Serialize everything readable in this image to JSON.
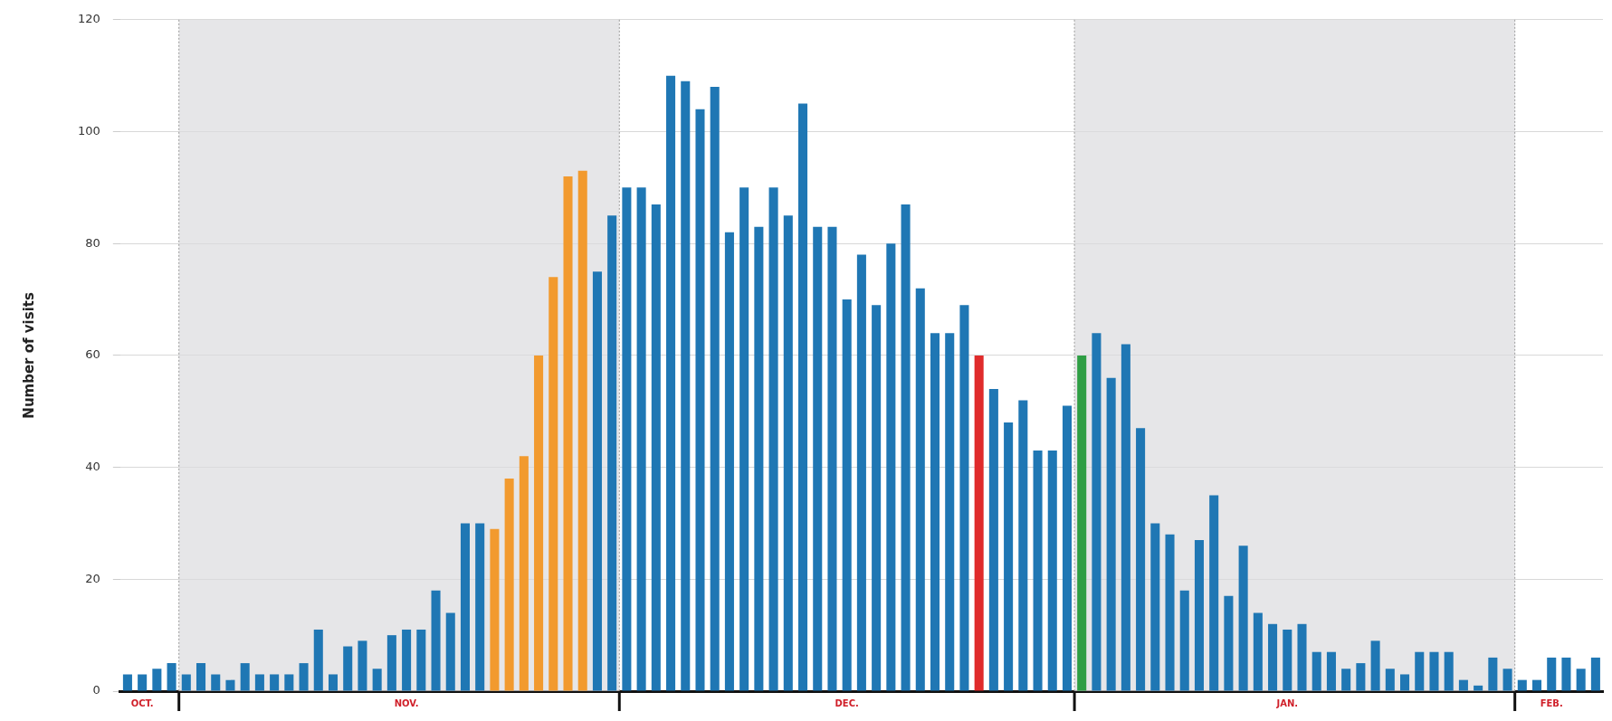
{
  "chart_data": {
    "type": "bar",
    "ylabel": "Number of visits",
    "categories": [
      null,
      "OCT.",
      null,
      null,
      null,
      null,
      null,
      null,
      null,
      null,
      null,
      null,
      null,
      null,
      null,
      null,
      null,
      null,
      null,
      "NOV.",
      null,
      null,
      null,
      null,
      null,
      null,
      null,
      null,
      null,
      null,
      null,
      null,
      null,
      null,
      null,
      null,
      null,
      null,
      null,
      null,
      null,
      null,
      null,
      null,
      null,
      null,
      null,
      null,
      null,
      "DEC.",
      null,
      null,
      null,
      null,
      null,
      null,
      null,
      null,
      null,
      null,
      null,
      null,
      null,
      null,
      null,
      null,
      null,
      null,
      null,
      null,
      null,
      null,
      null,
      null,
      null,
      null,
      null,
      null,
      null,
      "JAN.",
      null,
      null,
      null,
      null,
      null,
      null,
      null,
      null,
      null,
      null,
      null,
      null,
      null,
      null,
      null,
      null,
      null,
      "FEB.",
      null,
      null,
      null
    ],
    "values": [
      3,
      3,
      4,
      5,
      3,
      5,
      3,
      2,
      5,
      3,
      3,
      3,
      5,
      11,
      3,
      8,
      9,
      4,
      10,
      11,
      11,
      18,
      14,
      30,
      30,
      29,
      38,
      42,
      60,
      74,
      92,
      93,
      75,
      85,
      90,
      90,
      87,
      110,
      109,
      104,
      108,
      82,
      90,
      83,
      90,
      85,
      105,
      83,
      83,
      70,
      78,
      69,
      80,
      87,
      72,
      64,
      64,
      69,
      60,
      54,
      48,
      52,
      43,
      43,
      51,
      60,
      64,
      56,
      62,
      47,
      30,
      28,
      18,
      27,
      35,
      17,
      26,
      14,
      12,
      11,
      12,
      7,
      7,
      4,
      5,
      9,
      4,
      3,
      7,
      7,
      7,
      2,
      1,
      6,
      4,
      2,
      2,
      6,
      6,
      4,
      6
    ],
    "colors": [
      "#1f77b4",
      "#1f77b4",
      "#1f77b4",
      "#1f77b4",
      "#1f77b4",
      "#1f77b4",
      "#1f77b4",
      "#1f77b4",
      "#1f77b4",
      "#1f77b4",
      "#1f77b4",
      "#1f77b4",
      "#1f77b4",
      "#1f77b4",
      "#1f77b4",
      "#1f77b4",
      "#1f77b4",
      "#1f77b4",
      "#1f77b4",
      "#1f77b4",
      "#1f77b4",
      "#1f77b4",
      "#1f77b4",
      "#1f77b4",
      "#1f77b4",
      "#f29a2e",
      "#f29a2e",
      "#f29a2e",
      "#f29a2e",
      "#f29a2e",
      "#f29a2e",
      "#f29a2e",
      "#1f77b4",
      "#1f77b4",
      "#1f77b4",
      "#1f77b4",
      "#1f77b4",
      "#1f77b4",
      "#1f77b4",
      "#1f77b4",
      "#1f77b4",
      "#1f77b4",
      "#1f77b4",
      "#1f77b4",
      "#1f77b4",
      "#1f77b4",
      "#1f77b4",
      "#1f77b4",
      "#1f77b4",
      "#1f77b4",
      "#1f77b4",
      "#1f77b4",
      "#1f77b4",
      "#1f77b4",
      "#1f77b4",
      "#1f77b4",
      "#1f77b4",
      "#1f77b4",
      "#e02b2b",
      "#1f77b4",
      "#1f77b4",
      "#1f77b4",
      "#1f77b4",
      "#1f77b4",
      "#1f77b4",
      "#2e9e44",
      "#1f77b4",
      "#1f77b4",
      "#1f77b4",
      "#1f77b4",
      "#1f77b4",
      "#1f77b4",
      "#1f77b4",
      "#1f77b4",
      "#1f77b4",
      "#1f77b4",
      "#1f77b4",
      "#1f77b4",
      "#1f77b4",
      "#1f77b4",
      "#1f77b4",
      "#1f77b4",
      "#1f77b4",
      "#1f77b4",
      "#1f77b4",
      "#1f77b4",
      "#1f77b4",
      "#1f77b4",
      "#1f77b4",
      "#1f77b4",
      "#1f77b4",
      "#1f77b4",
      "#1f77b4",
      "#1f77b4",
      "#1f77b4",
      "#1f77b4",
      "#1f77b4",
      "#1f77b4",
      "#1f77b4",
      "#1f77b4",
      "#1f77b4"
    ],
    "ylim": [
      0,
      120
    ],
    "yticks": [
      0,
      20,
      40,
      60,
      80,
      100,
      120
    ],
    "grid": "y",
    "legend": false
  }
}
